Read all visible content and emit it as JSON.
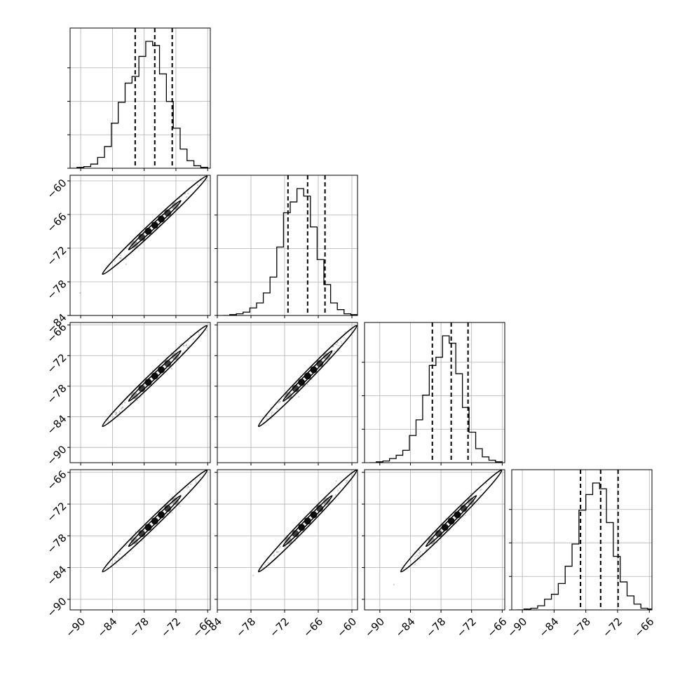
{
  "chart_data": {
    "type": "scatter",
    "title": "",
    "parameters": 4,
    "grid": true,
    "bins": 20,
    "quantiles": [
      0.16,
      0.5,
      0.84
    ],
    "ranges": [
      [
        -92,
        -65.5
      ],
      [
        -84,
        -59
      ],
      [
        -93,
        -65.5
      ],
      [
        -92,
        -65.5
      ]
    ],
    "tick_values": [
      [
        -90,
        -84,
        -78,
        -72,
        -66
      ],
      [
        -84,
        -78,
        -72,
        -66,
        -60
      ],
      [
        -90,
        -84,
        -78,
        -72,
        -66
      ],
      [
        -90,
        -84,
        -78,
        -72,
        -66
      ]
    ],
    "tick_labels": [
      [
        "−90",
        "−84",
        "−78",
        "−72",
        "−66"
      ],
      [
        "−84",
        "−78",
        "−72",
        "−66",
        "−60"
      ],
      [
        "−90",
        "−84",
        "−78",
        "−72",
        "−66"
      ],
      [
        "−90",
        "−84",
        "−78",
        "−72",
        "−66"
      ]
    ],
    "histograms": [
      {
        "parameter": 0,
        "bin_start": -92,
        "bin_width": 1.3,
        "counts": [
          0,
          1,
          2,
          5,
          13,
          26,
          54,
          79,
          102,
          110,
          134,
          152,
          147,
          113,
          80,
          48,
          23,
          9,
          3,
          1
        ],
        "quantile_values": [
          -79.7,
          -76.0,
          -72.7
        ]
      },
      {
        "parameter": 1,
        "bin_start": -83,
        "bin_width": 1.2,
        "counts": [
          0,
          1,
          2,
          4,
          9,
          15,
          27,
          46,
          82,
          123,
          136,
          152,
          143,
          106,
          67,
          37,
          15,
          7,
          2,
          1
        ],
        "quantile_values": [
          -71.4,
          -67.9,
          -64.8
        ]
      },
      {
        "parameter": 2,
        "bin_start": -92,
        "bin_width": 1.3,
        "counts": [
          0,
          1,
          2,
          5,
          9,
          15,
          33,
          52,
          82,
          118,
          128,
          154,
          145,
          108,
          67,
          37,
          17,
          7,
          3,
          1
        ],
        "quantile_values": [
          -79.7,
          -76.0,
          -72.7
        ]
      },
      {
        "parameter": 3,
        "bin_start": -91,
        "bin_width": 1.3,
        "counts": [
          0,
          1,
          2,
          5,
          13,
          19,
          32,
          53,
          80,
          121,
          140,
          154,
          147,
          106,
          65,
          34,
          17,
          7,
          2,
          1
        ],
        "quantile_values": [
          -79.0,
          -75.2,
          -71.9
        ]
      }
    ],
    "joint_mean": [
      -76.0,
      -67.9,
      -76.0,
      -75.2
    ],
    "joint_std": [
      3.5,
      3.1,
      3.5,
      3.4
    ],
    "correlation": 0.985,
    "contour_levels": [
      0.393,
      0.865
    ]
  }
}
